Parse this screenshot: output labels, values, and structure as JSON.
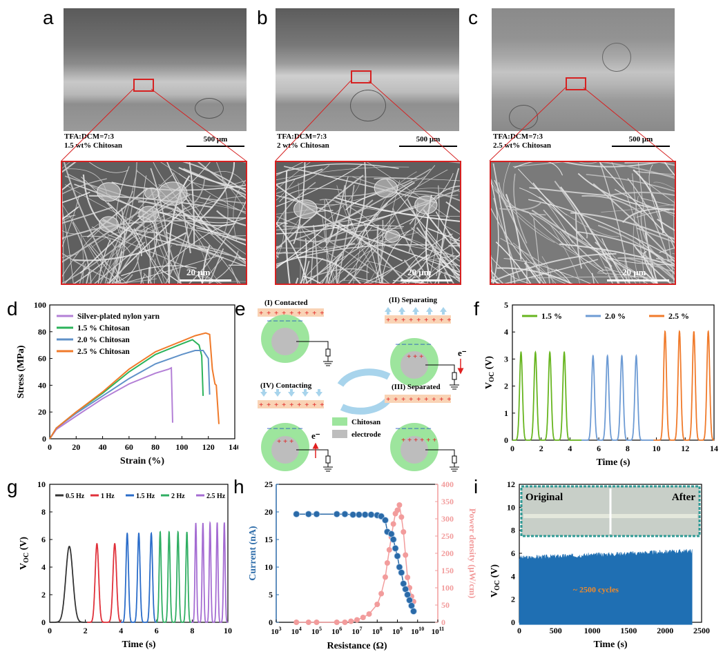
{
  "panels": {
    "a": {
      "letter": "a",
      "cap1": "TFA:DCM=7:3",
      "cap2": "1.5 wt% Chitosan",
      "scale": "500 μm",
      "zoom_scale": "20 μm"
    },
    "b": {
      "letter": "b",
      "cap1": "TFA:DCM=7:3",
      "cap2": "2 wt% Chitosan",
      "scale": "500 μm",
      "zoom_scale": "20 μm"
    },
    "c": {
      "letter": "c",
      "cap1": "TFA:DCM=7:3",
      "cap2": "2.5 wt% Chitosan",
      "scale": "500 μm",
      "zoom_scale": "20 μm"
    },
    "d": {
      "letter": "d"
    },
    "e": {
      "letter": "e"
    },
    "f": {
      "letter": "f"
    },
    "g": {
      "letter": "g"
    },
    "h": {
      "letter": "h"
    },
    "i": {
      "letter": "i"
    }
  },
  "chart_data": [
    {
      "id": "d",
      "type": "line",
      "xlabel": "Strain (%)",
      "ylabel": "Stress (MPa)",
      "xlim": [
        0,
        140
      ],
      "ylim": [
        0,
        100
      ],
      "xticks": [
        0,
        20,
        40,
        60,
        80,
        100,
        120,
        140
      ],
      "yticks": [
        0,
        20,
        40,
        60,
        80,
        100
      ],
      "legend": "top-left",
      "series": [
        {
          "name": "Silver-plated nylon yarn",
          "color": "#b37fd6",
          "points": [
            [
              0,
              0
            ],
            [
              5,
              7
            ],
            [
              20,
              17
            ],
            [
              40,
              30
            ],
            [
              60,
              41
            ],
            [
              80,
              49
            ],
            [
              90,
              52
            ],
            [
              92,
              53
            ],
            [
              93,
              12
            ]
          ]
        },
        {
          "name": "1.5 % Chitosan",
          "color": "#2bb35a",
          "points": [
            [
              0,
              0
            ],
            [
              5,
              8
            ],
            [
              20,
              20
            ],
            [
              40,
              34
            ],
            [
              60,
              50
            ],
            [
              80,
              63
            ],
            [
              100,
              71
            ],
            [
              108,
              74
            ],
            [
              113,
              70
            ],
            [
              115,
              62
            ],
            [
              116,
              32
            ]
          ]
        },
        {
          "name": "2.0 % Chitosan",
          "color": "#5f91c8",
          "points": [
            [
              0,
              0
            ],
            [
              5,
              8
            ],
            [
              20,
              19
            ],
            [
              40,
              32
            ],
            [
              60,
              45
            ],
            [
              80,
              56
            ],
            [
              100,
              63
            ],
            [
              110,
              66
            ],
            [
              116,
              66
            ],
            [
              120,
              60
            ],
            [
              121,
              33
            ]
          ]
        },
        {
          "name": "2.5 % Chitosan",
          "color": "#f07a2a",
          "points": [
            [
              0,
              0
            ],
            [
              5,
              8
            ],
            [
              20,
              20
            ],
            [
              40,
              35
            ],
            [
              60,
              52
            ],
            [
              80,
              65
            ],
            [
              100,
              73
            ],
            [
              110,
              77
            ],
            [
              118,
              79
            ],
            [
              121,
              78
            ],
            [
              123,
              52
            ],
            [
              125,
              41
            ],
            [
              126,
              40
            ],
            [
              128,
              11
            ]
          ]
        }
      ]
    },
    {
      "id": "f",
      "type": "line",
      "xlabel": "Time (s)",
      "ylabel": "VOC (V)",
      "xlim": [
        0,
        14
      ],
      "ylim": [
        0,
        5
      ],
      "xticks": [
        0,
        2,
        4,
        6,
        8,
        10,
        12,
        14
      ],
      "yticks": [
        0,
        1,
        2,
        3,
        4,
        5
      ],
      "legend": "top",
      "series": [
        {
          "name": "1.5 %",
          "color": "#67b51f",
          "peaks": [
            0.6,
            1.6,
            2.6,
            3.6
          ],
          "height": 3.25
        },
        {
          "name": "2.0 %",
          "color": "#6d9bd4",
          "peaks": [
            5.6,
            6.6,
            7.6,
            8.6
          ],
          "height": 3.12
        },
        {
          "name": "2.5 %",
          "color": "#f07a2a",
          "peaks": [
            10.6,
            11.6,
            12.6,
            13.6
          ],
          "height": 4.02
        }
      ]
    },
    {
      "id": "g",
      "type": "line",
      "xlabel": "Time (s)",
      "ylabel": "VOC (V)",
      "xlim": [
        0,
        10
      ],
      "ylim": [
        0,
        10
      ],
      "xticks": [
        0,
        2,
        4,
        6,
        8,
        10
      ],
      "yticks": [
        0,
        2,
        4,
        6,
        8,
        10
      ],
      "legend": "top",
      "series": [
        {
          "name": "0.5 Hz",
          "color": "#333333",
          "peaks": [
            1.1
          ],
          "height": 5.5,
          "width": 0.28
        },
        {
          "name": "1 Hz",
          "color": "#e0303a",
          "peaks": [
            2.65,
            3.65
          ],
          "height": 5.7,
          "width": 0.14
        },
        {
          "name": "1.5 Hz",
          "color": "#2a6cc9",
          "peaks": [
            4.35,
            5.0,
            5.7
          ],
          "height": 6.45,
          "width": 0.1
        },
        {
          "name": "2 Hz",
          "color": "#2fae62",
          "peaks": [
            6.2,
            6.7,
            7.2,
            7.7
          ],
          "height": 6.55,
          "width": 0.08
        },
        {
          "name": "2.5 Hz",
          "color": "#a46bd2",
          "peaks": [
            8.2,
            8.6,
            9.0,
            9.4,
            9.8
          ],
          "height": 7.2,
          "width": 0.065
        }
      ]
    },
    {
      "id": "h",
      "type": "scatter",
      "xlabel": "Resistance (Ω)",
      "ylabel": "Current (nA)",
      "y2label": "Power density (μW/cm)",
      "xlim_log": [
        3,
        11
      ],
      "ylim": [
        0,
        25
      ],
      "y2lim": [
        0,
        400
      ],
      "xticks_log": [
        3,
        4,
        5,
        6,
        7,
        8,
        9,
        10,
        11
      ],
      "yticks": [
        0,
        5,
        10,
        15,
        20,
        25
      ],
      "y2ticks": [
        0,
        50,
        100,
        150,
        200,
        250,
        300,
        350,
        400
      ],
      "current": {
        "color": "#2a6aa8",
        "points": [
          [
            4,
            19.6
          ],
          [
            4.6,
            19.6
          ],
          [
            5,
            19.6
          ],
          [
            6,
            19.6
          ],
          [
            6.4,
            19.6
          ],
          [
            6.8,
            19.5
          ],
          [
            7.1,
            19.5
          ],
          [
            7.4,
            19.5
          ],
          [
            7.7,
            19.5
          ],
          [
            8,
            19.4
          ],
          [
            8.2,
            19.2
          ],
          [
            8.4,
            18.5
          ],
          [
            8.5,
            16.4
          ],
          [
            8.7,
            16
          ],
          [
            8.8,
            15
          ],
          [
            8.9,
            13.4
          ],
          [
            9,
            12
          ],
          [
            9.1,
            10
          ],
          [
            9.2,
            9
          ],
          [
            9.3,
            7
          ],
          [
            9.4,
            6
          ],
          [
            9.5,
            5
          ],
          [
            9.6,
            4
          ],
          [
            9.7,
            3
          ],
          [
            9.8,
            2
          ]
        ]
      },
      "power": {
        "color": "#f29c9c",
        "points": [
          [
            4,
            0
          ],
          [
            4.6,
            0
          ],
          [
            5,
            0
          ],
          [
            6,
            0
          ],
          [
            6.4,
            0
          ],
          [
            6.7,
            3
          ],
          [
            7,
            7
          ],
          [
            7.3,
            14
          ],
          [
            7.6,
            24
          ],
          [
            8,
            52
          ],
          [
            8.2,
            83
          ],
          [
            8.4,
            131
          ],
          [
            8.5,
            172
          ],
          [
            8.6,
            210
          ],
          [
            8.7,
            247
          ],
          [
            8.8,
            285
          ],
          [
            8.9,
            315
          ],
          [
            9.0,
            325
          ],
          [
            9.1,
            340
          ],
          [
            9.2,
            305
          ],
          [
            9.3,
            262
          ],
          [
            9.4,
            195
          ],
          [
            9.5,
            130
          ],
          [
            9.6,
            100
          ],
          [
            9.7,
            75
          ],
          [
            9.8,
            60
          ]
        ]
      }
    },
    {
      "id": "i",
      "type": "area",
      "xlabel": "Time (s)",
      "ylabel": "VOC (V)",
      "xlim": [
        0,
        2500
      ],
      "ylim": [
        0,
        12
      ],
      "xticks": [
        0,
        500,
        1000,
        1500,
        2000,
        2500
      ],
      "yticks": [
        0,
        2,
        4,
        6,
        8,
        10,
        12
      ],
      "series": [
        {
          "name": "",
          "color": "#1f6fb3",
          "x_end": 2370,
          "top_start": 5.6,
          "top_end": 6.2
        }
      ],
      "annotation": "~ 2500 cycles",
      "inset_labels": [
        "Original",
        "After"
      ]
    }
  ],
  "diagram_e": {
    "stages": [
      "(I) Contacted",
      "(II) Separating",
      "(III) Separated",
      "(IV) Contacting"
    ],
    "legend": [
      "Chitosan",
      "electrode"
    ],
    "electron": "e⁻",
    "colors": {
      "chitosan": "#9de59d",
      "electrode": "#bdbdbd",
      "plate": "#f9d3b5",
      "plus": "#e02020",
      "minus": "#2050c0"
    }
  }
}
